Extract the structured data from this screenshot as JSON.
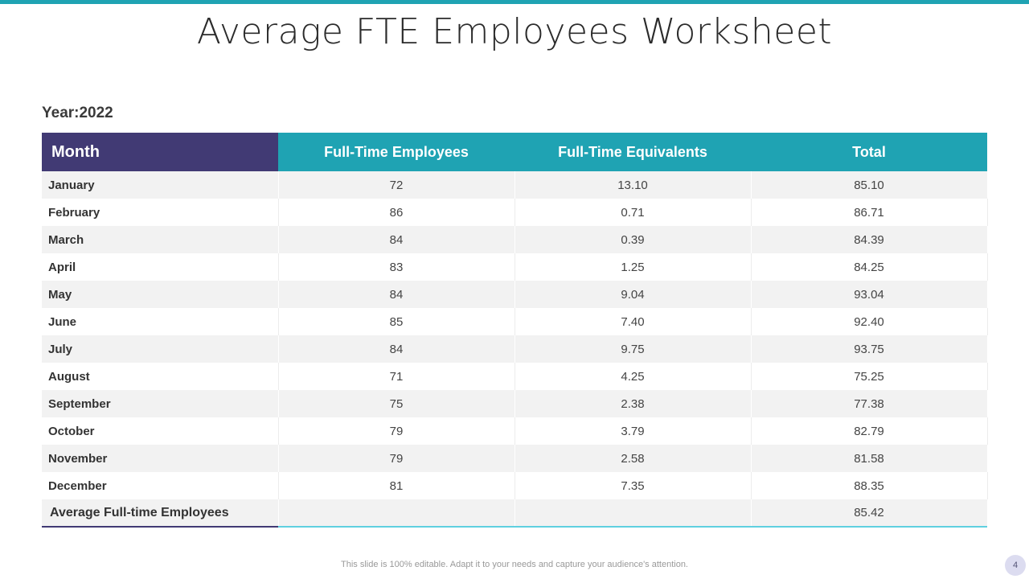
{
  "title": "Average FTE Employees Worksheet",
  "year_label": "Year:2022",
  "table": {
    "headers": [
      "Month",
      "Full-Time Employees",
      "Full-Time Equivalents",
      "Total"
    ],
    "rows": [
      {
        "month": "January",
        "fte_employees": "72",
        "fte_equivalents": "13.10",
        "total": "85.10"
      },
      {
        "month": "February",
        "fte_employees": "86",
        "fte_equivalents": "0.71",
        "total": "86.71"
      },
      {
        "month": "March",
        "fte_employees": "84",
        "fte_equivalents": "0.39",
        "total": "84.39"
      },
      {
        "month": "April",
        "fte_employees": "83",
        "fte_equivalents": "1.25",
        "total": "84.25"
      },
      {
        "month": "May",
        "fte_employees": "84",
        "fte_equivalents": "9.04",
        "total": "93.04"
      },
      {
        "month": "June",
        "fte_employees": "85",
        "fte_equivalents": "7.40",
        "total": "92.40"
      },
      {
        "month": "July",
        "fte_employees": "84",
        "fte_equivalents": "9.75",
        "total": "93.75"
      },
      {
        "month": "August",
        "fte_employees": "71",
        "fte_equivalents": "4.25",
        "total": "75.25"
      },
      {
        "month": "September",
        "fte_employees": "75",
        "fte_equivalents": "2.38",
        "total": "77.38"
      },
      {
        "month": "October",
        "fte_employees": "79",
        "fte_equivalents": "3.79",
        "total": "82.79"
      },
      {
        "month": "November",
        "fte_employees": "79",
        "fte_equivalents": "2.58",
        "total": "81.58"
      },
      {
        "month": "December",
        "fte_employees": "81",
        "fte_equivalents": "7.35",
        "total": "88.35"
      }
    ],
    "average": {
      "label": "Average Full-time Employees",
      "total": "85.42"
    }
  },
  "footer_text": "This slide is 100% editable. Adapt it to your needs and capture your audience's attention.",
  "page_number": "4",
  "colors": {
    "accent": "#1fa3b3",
    "header_month": "#413a74",
    "row_alt": "#f2f2f2"
  }
}
